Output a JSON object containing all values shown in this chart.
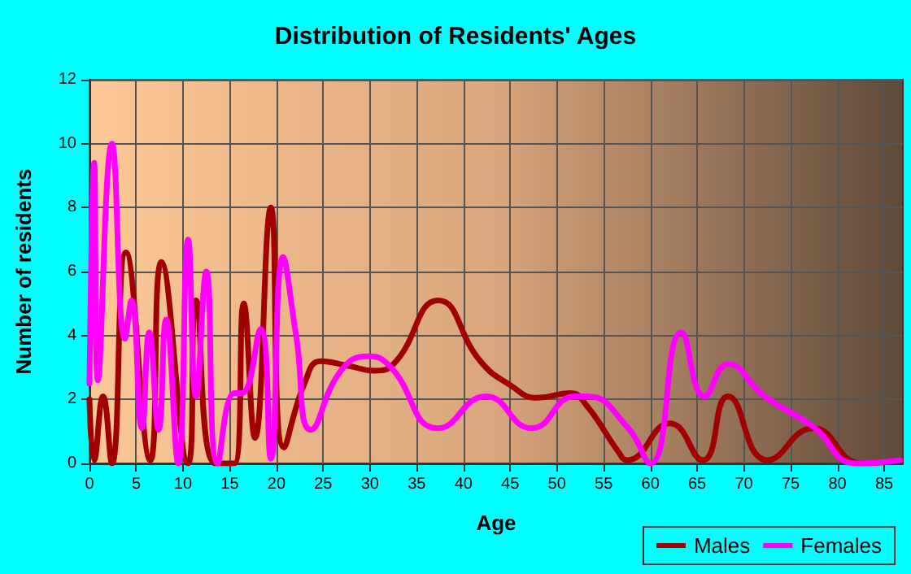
{
  "chart_data": {
    "type": "line",
    "title": "Distribution of Residents' Ages",
    "xlabel": "Age",
    "ylabel": "Number of residents",
    "xlim": [
      0,
      87
    ],
    "xticks": [
      0,
      5,
      10,
      15,
      20,
      25,
      30,
      35,
      40,
      45,
      50,
      55,
      60,
      65,
      70,
      75,
      80,
      85
    ],
    "ylim": [
      0,
      12
    ],
    "yticks": [
      0,
      2,
      4,
      6,
      8,
      10,
      12
    ],
    "grid": true,
    "legend": "bottom right",
    "marker": "none",
    "line_style": "solid",
    "series": [
      {
        "name": "Males",
        "color": "#a00000",
        "x": [
          0,
          0.5,
          1.45,
          2.4,
          3.9,
          6.5,
          7.7,
          10.55,
          11.4,
          13.45,
          15.5,
          16.5,
          17.7,
          19.4,
          20.8,
          23,
          24.75,
          27.7,
          30.5,
          32.5,
          37.3,
          41.8,
          45,
          47.9,
          51.4,
          53.2,
          56.6,
          57.5,
          62.1,
          65.6,
          68.3,
          72.5,
          77.4,
          82.6,
          86.7
        ],
        "values": [
          2,
          0.1,
          2.1,
          0,
          6.6,
          0.1,
          6.3,
          0,
          5.1,
          0,
          0,
          5,
          0.8,
          8,
          0.5,
          2.5,
          3.2,
          3.05,
          2.9,
          3.1,
          5.1,
          3.2,
          2.45,
          2.05,
          2.2,
          1.8,
          0.35,
          0.1,
          1.25,
          0.1,
          2.1,
          0.1,
          1.1,
          0,
          0.1
        ]
      },
      {
        "name": "Females",
        "color": "#ff00ff",
        "x": [
          0,
          0.5,
          0.9,
          2.4,
          3.8,
          4.5,
          5.6,
          6.4,
          7.4,
          8.2,
          9.5,
          10.55,
          11.4,
          12.5,
          13.7,
          15.5,
          16.3,
          18.3,
          19.4,
          20.7,
          22.1,
          23.7,
          26.9,
          29.8,
          32.1,
          37.3,
          42.4,
          47.3,
          51.9,
          53.2,
          57.5,
          60,
          63.3,
          65.8,
          68.3,
          72.2,
          77.4,
          82,
          86.7
        ],
        "values": [
          2.5,
          9.4,
          2.6,
          10,
          3.9,
          5.1,
          1.1,
          4.1,
          1.05,
          4.5,
          0,
          7,
          2.1,
          6,
          0,
          2.2,
          2.2,
          4.2,
          0.15,
          6.45,
          4,
          1.05,
          2.9,
          3.35,
          3.05,
          1.1,
          2.1,
          1.1,
          2.1,
          2.1,
          1.15,
          0,
          4.1,
          2.1,
          3.1,
          2.1,
          1.15,
          0,
          0.1
        ]
      }
    ]
  }
}
